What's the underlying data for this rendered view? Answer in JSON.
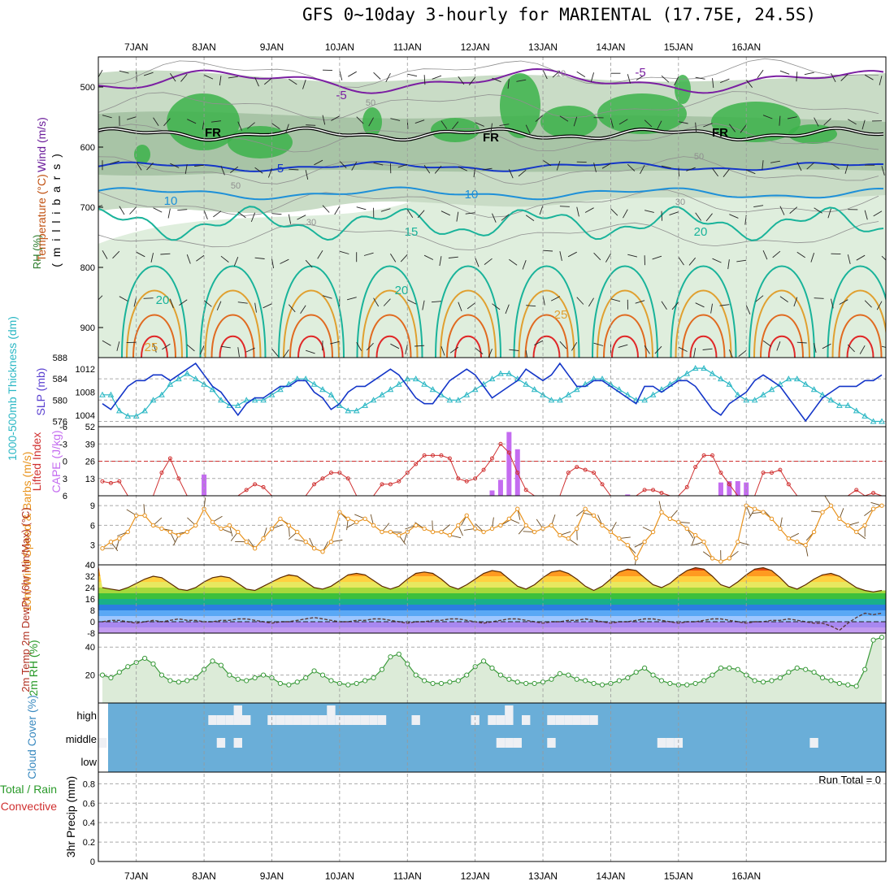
{
  "title": "GFS 0~10day 3-hourly for MARIENTAL (17.75E, 24.5S)",
  "colors": {
    "temperature": "#7b1fa2",
    "wind": "#000000",
    "rh_dark": "#3cb34a",
    "rh_light": "#dfeedd",
    "thickness": "#2ab7c4",
    "slp": "#1436c8",
    "lifted": "#d03030",
    "cape": "#c46cf0",
    "wind10": "#e8921c",
    "tmax": "#7a2e00",
    "rh2m": "#3a9a3a",
    "cloud_bg": "#6aaed8",
    "cloud_fill": "#eef0f4"
  },
  "chart_data": [
    {
      "type": "heatmap",
      "name": "vertical_profile",
      "ylabel_parts": [
        "Wind (m/s)",
        "Temperature (°C)",
        "RH (%)",
        "( m i l l i b a r s )"
      ],
      "y_ticks": [
        500,
        600,
        700,
        800,
        900
      ],
      "ylim": [
        950,
        450
      ],
      "contour_labels": [
        "-5",
        "-5",
        "FR",
        "FR",
        "FR",
        "5",
        "10",
        "10",
        "15",
        "20",
        "20",
        "20",
        "25",
        "25",
        "50",
        "50",
        "50",
        "30",
        "30",
        "10"
      ],
      "temperature_levels": [
        -5,
        0,
        5,
        10,
        15,
        20,
        25,
        30
      ]
    },
    {
      "type": "line",
      "name": "thickness_slp",
      "ylabel_left": "1000-500mb Thickness (dm)",
      "ylabel_right": "SLP (mb)",
      "left_ticks": [
        576,
        580,
        584,
        588
      ],
      "right_ticks": [
        1004,
        1008,
        1012
      ],
      "ylim_left": [
        575,
        588
      ],
      "ylim_right": [
        1002,
        1014
      ],
      "series": [
        {
          "name": "1000-500mb Thickness (dm)",
          "axis": "left",
          "values": [
            581,
            581,
            578,
            577,
            577,
            578,
            580,
            581,
            583,
            584,
            585,
            584,
            583,
            582,
            580,
            579,
            579,
            580,
            580,
            580,
            581,
            582,
            583,
            584,
            584,
            583,
            582,
            581,
            579,
            578,
            578,
            579,
            580,
            581,
            582,
            583,
            584,
            584,
            583,
            582,
            581,
            580,
            580,
            581,
            582,
            583,
            584,
            585,
            585,
            584,
            583,
            582,
            581,
            580,
            580,
            581,
            582,
            583,
            584,
            584,
            583,
            582,
            581,
            580,
            580,
            581,
            582,
            583,
            584,
            585,
            586,
            586,
            585,
            584,
            583,
            581,
            580,
            580,
            581,
            582,
            583,
            584,
            584,
            583,
            582,
            581,
            580,
            579,
            579,
            578,
            577,
            576,
            576
          ]
        },
        {
          "name": "SLP (mb)",
          "axis": "right",
          "values": [
            1006,
            1005,
            1007,
            1009,
            1010,
            1010,
            1011,
            1011,
            1010,
            1011,
            1012,
            1013,
            1011,
            1009,
            1008,
            1006,
            1004,
            1006,
            1007,
            1007,
            1008,
            1009,
            1009,
            1010,
            1010,
            1008,
            1007,
            1005,
            1006,
            1008,
            1009,
            1009,
            1010,
            1011,
            1012,
            1011,
            1009,
            1007,
            1006,
            1006,
            1008,
            1010,
            1011,
            1012,
            1011,
            1009,
            1007,
            1008,
            1009,
            1010,
            1012,
            1011,
            1010,
            1011,
            1013,
            1011,
            1009,
            1009,
            1010,
            1010,
            1009,
            1008,
            1007,
            1006,
            1009,
            1009,
            1008,
            1009,
            1010,
            1010,
            1009,
            1007,
            1005,
            1004,
            1006,
            1007,
            1008,
            1010,
            1011,
            1010,
            1009,
            1007,
            1005,
            1003,
            1005,
            1007,
            1008,
            1009,
            1009,
            1009,
            1010,
            1010,
            1011
          ]
        }
      ]
    },
    {
      "type": "bar",
      "name": "cape_lifted",
      "ylabel_left": "Lifted Index",
      "ylabel_right": "CAPE (J/kg)",
      "left_ticks": [
        -6,
        -3,
        0,
        3,
        6
      ],
      "right_ticks": [
        13,
        26,
        39,
        52
      ],
      "ylim_cape": [
        0,
        52
      ],
      "cape_bars": [
        {
          "x": 12,
          "value": 16
        },
        {
          "x": 46,
          "value": 4
        },
        {
          "x": 47,
          "value": 12
        },
        {
          "x": 48,
          "value": 48
        },
        {
          "x": 49,
          "value": 35
        },
        {
          "x": 62,
          "value": 1
        },
        {
          "x": 73,
          "value": 10
        },
        {
          "x": 74,
          "value": 11
        },
        {
          "x": 75,
          "value": 11
        },
        {
          "x": 76,
          "value": 10
        }
      ],
      "lifted_index": [
        3.5,
        3.8,
        3.5,
        6,
        6,
        6,
        6,
        2,
        -0.5,
        3,
        6,
        6,
        6,
        6,
        6,
        6,
        6,
        5,
        4,
        4.5,
        6,
        6,
        6,
        6,
        6,
        4,
        3,
        2,
        2,
        3,
        6,
        6,
        6,
        4,
        4,
        3.5,
        2,
        0.5,
        -1,
        -1,
        -1,
        -0.5,
        3,
        3.5,
        3,
        1.5,
        -0.5,
        -3,
        -1.5,
        2,
        5,
        6,
        6,
        6,
        6,
        2,
        1,
        1.5,
        2,
        4,
        6,
        6,
        6,
        6,
        5,
        5,
        5.5,
        6,
        6,
        4.5,
        1,
        -1,
        -1,
        2,
        4,
        6,
        6,
        6,
        2,
        2,
        1.5,
        4,
        6,
        6,
        6,
        6,
        6,
        6,
        6,
        5,
        6,
        5.5,
        6
      ]
    },
    {
      "type": "line",
      "name": "wind10m",
      "ylabel": "10m Wind Speed & Barbs (m/s)",
      "y_ticks": [
        0,
        3,
        6,
        9
      ],
      "ylim": [
        0,
        10.5
      ],
      "values": [
        2.5,
        3.5,
        4,
        5,
        7.5,
        7.5,
        6,
        5.5,
        5,
        4.5,
        5,
        6,
        8.5,
        6.5,
        5.5,
        6,
        5,
        3.5,
        2.5,
        4,
        5.5,
        7,
        6,
        5,
        3.5,
        2.5,
        2,
        3.5,
        8,
        7,
        6.5,
        7,
        6,
        5,
        5,
        4.5,
        5,
        6,
        5.5,
        5,
        5,
        4.5,
        6,
        7.5,
        5.5,
        5,
        5.5,
        6,
        7,
        8.5,
        6,
        5,
        5.5,
        6,
        4.5,
        4,
        5.5,
        8.5,
        7.5,
        6,
        5,
        4,
        3,
        1,
        3.5,
        5,
        8,
        7,
        6.5,
        5.5,
        4.5,
        3.5,
        1,
        0.5,
        1,
        3.5,
        9,
        8.5,
        8,
        7,
        5.5,
        4,
        3.5,
        3,
        5,
        8,
        9,
        7,
        6,
        5,
        6,
        8.5,
        9
      ]
    },
    {
      "type": "area",
      "name": "temp2m",
      "ylabel": "2m Temp 2m DewPt (6hr Min/Max) (°C)",
      "y_ticks": [
        -8,
        0,
        8,
        16,
        24,
        32,
        40
      ],
      "ylim": [
        -8,
        40
      ],
      "temp_bands": [
        -8,
        -4,
        0,
        4,
        8,
        12,
        16,
        20,
        24,
        28,
        32,
        36
      ],
      "temp": [
        24,
        23,
        22,
        24,
        27,
        30,
        32,
        31,
        27,
        23,
        22,
        24,
        28,
        31,
        32,
        31,
        27,
        23,
        22,
        25,
        28,
        31,
        33,
        32,
        28,
        24,
        23,
        25,
        29,
        33,
        34,
        33,
        29,
        25,
        23,
        25,
        30,
        34,
        35,
        34,
        30,
        25,
        23,
        26,
        30,
        34,
        36,
        35,
        30,
        25,
        23,
        26,
        31,
        35,
        36,
        34,
        30,
        25,
        22,
        25,
        30,
        35,
        37,
        36,
        31,
        26,
        24,
        27,
        32,
        36,
        38,
        37,
        32,
        26,
        24,
        28,
        33,
        37,
        38,
        36,
        31,
        25,
        23,
        26,
        30,
        33,
        34,
        32,
        28,
        24,
        22,
        21,
        22
      ],
      "dewpoint": [
        0,
        1,
        1,
        0,
        -1,
        0,
        1,
        0,
        1,
        2,
        1,
        1,
        0,
        0,
        1,
        1,
        2,
        2,
        1,
        0,
        -1,
        0,
        0,
        1,
        2,
        3,
        2,
        1,
        0,
        0,
        1,
        1,
        2,
        2,
        1,
        0,
        -1,
        0,
        0,
        1,
        1,
        2,
        2,
        1,
        0,
        -1,
        0,
        1,
        2,
        2,
        1,
        0,
        -1,
        0,
        0,
        1,
        1,
        2,
        1,
        0,
        -1,
        0,
        0,
        1,
        2,
        2,
        1,
        0,
        -1,
        0,
        0,
        1,
        2,
        2,
        1,
        0,
        -1,
        0,
        0,
        1,
        1,
        2,
        1,
        0,
        -1,
        -1,
        -3,
        -6,
        -1,
        3,
        6,
        5,
        6
      ]
    },
    {
      "type": "area",
      "name": "rh2m",
      "ylabel": "2m RH (%)",
      "y_ticks": [
        20,
        40
      ],
      "ylim": [
        0,
        50
      ],
      "values": [
        20,
        18,
        22,
        26,
        29,
        32,
        28,
        20,
        16,
        15,
        16,
        18,
        24,
        30,
        27,
        20,
        17,
        16,
        18,
        20,
        18,
        14,
        13,
        15,
        18,
        23,
        20,
        16,
        14,
        13,
        14,
        16,
        18,
        24,
        33,
        35,
        28,
        20,
        16,
        14,
        14,
        15,
        16,
        20,
        26,
        30,
        25,
        20,
        17,
        15,
        14,
        14,
        15,
        17,
        21,
        20,
        17,
        16,
        14,
        13,
        14,
        16,
        18,
        22,
        25,
        20,
        16,
        14,
        13,
        13,
        14,
        16,
        20,
        25,
        25,
        24,
        20,
        16,
        15,
        16,
        18,
        22,
        25,
        24,
        22,
        18,
        16,
        14,
        13,
        12,
        24,
        45,
        47
      ]
    },
    {
      "type": "heatmap",
      "name": "cloud_cover",
      "ylabel": "Cloud Cover (%)",
      "rows": [
        "high",
        "middle",
        "low"
      ],
      "high": [
        0,
        0,
        0,
        0,
        0,
        0,
        0,
        0,
        0,
        0,
        0,
        0,
        0,
        1,
        1,
        1,
        2,
        1,
        0,
        0,
        1,
        1,
        1,
        1,
        1,
        1,
        1,
        2,
        1,
        1,
        1,
        1,
        1,
        1,
        0,
        0,
        0,
        1,
        0,
        0,
        0,
        0,
        0,
        0,
        1,
        0,
        1,
        1,
        2,
        0,
        1,
        0,
        0,
        1,
        1,
        1,
        1,
        1,
        1,
        0,
        0,
        0,
        0,
        0,
        0,
        0,
        0,
        0,
        0,
        0,
        0,
        0,
        0,
        0,
        0,
        0,
        0,
        0,
        0,
        0,
        0,
        0,
        0,
        0,
        0,
        0,
        0,
        0,
        0,
        0,
        0,
        0,
        0
      ],
      "middle": [
        1,
        0,
        0,
        0,
        0,
        0,
        0,
        0,
        0,
        0,
        0,
        0,
        0,
        0,
        1,
        0,
        1,
        0,
        0,
        0,
        0,
        0,
        0,
        0,
        0,
        0,
        0,
        0,
        0,
        0,
        0,
        0,
        0,
        0,
        0,
        0,
        0,
        0,
        0,
        0,
        0,
        0,
        0,
        0,
        0,
        0,
        0,
        1,
        1,
        1,
        0,
        0,
        0,
        1,
        0,
        0,
        0,
        0,
        0,
        0,
        0,
        0,
        0,
        0,
        0,
        0,
        1,
        1,
        1,
        0,
        0,
        0,
        0,
        0,
        0,
        0,
        0,
        0,
        0,
        0,
        0,
        0,
        0,
        0,
        1,
        0,
        0,
        0,
        0,
        0,
        0,
        0,
        0
      ],
      "low": [
        0,
        0,
        0,
        0,
        0,
        0,
        0,
        0,
        0,
        0,
        0,
        0,
        0,
        0,
        0,
        0,
        0,
        0,
        0,
        0,
        0,
        0,
        0,
        0,
        0,
        0,
        0,
        0,
        0,
        0,
        0,
        0,
        0,
        0,
        0,
        0,
        0,
        0,
        0,
        0,
        0,
        0,
        0,
        0,
        0,
        0,
        0,
        0,
        0,
        0,
        0,
        0,
        0,
        0,
        0,
        0,
        0,
        0,
        0,
        0,
        0,
        0,
        0,
        0,
        0,
        0,
        0,
        0,
        0,
        0,
        0,
        0,
        0,
        0,
        0,
        0,
        0,
        0,
        0,
        0,
        0,
        0,
        0,
        0,
        0,
        0,
        0,
        0,
        0,
        0,
        0,
        0,
        0
      ]
    },
    {
      "type": "bar",
      "name": "precip3hr",
      "ylabel_left": "Total / Rain",
      "ylabel_left2": "Convective",
      "ylabel": "3hr Precip (mm)",
      "y_ticks": [
        0,
        0.2,
        0.4,
        0.6,
        0.8
      ],
      "ylim": [
        0,
        0.92
      ],
      "run_total": "Run Total = 0",
      "values": []
    }
  ],
  "x_axis": {
    "dates": [
      "7JAN",
      "8JAN",
      "9JAN",
      "10JAN",
      "11JAN",
      "12JAN",
      "13JAN",
      "14JAN",
      "15JAN",
      "16JAN"
    ],
    "date_steps": [
      4,
      12,
      20,
      28,
      36,
      44,
      52,
      60,
      68,
      76
    ],
    "steps": 93
  }
}
